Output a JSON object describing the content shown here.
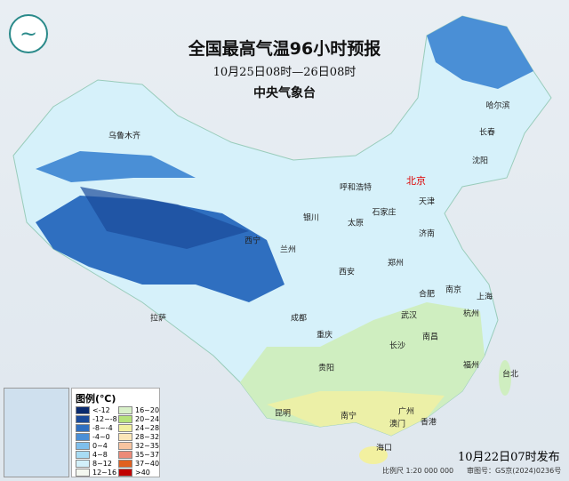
{
  "header": {
    "title": "全国最高气温96小时预报",
    "period": "10月25日08时—26日08时",
    "issuer": "中央气象台"
  },
  "cities": [
    {
      "name": "乌鲁木齐"
    },
    {
      "name": "哈尔滨"
    },
    {
      "name": "长春"
    },
    {
      "name": "沈阳"
    },
    {
      "name": "北京",
      "capital": true
    },
    {
      "name": "天津"
    },
    {
      "name": "呼和浩特"
    },
    {
      "name": "石家庄"
    },
    {
      "name": "太原"
    },
    {
      "name": "济南"
    },
    {
      "name": "银川"
    },
    {
      "name": "西宁"
    },
    {
      "name": "兰州"
    },
    {
      "name": "郑州"
    },
    {
      "name": "西安"
    },
    {
      "name": "合肥"
    },
    {
      "name": "南京"
    },
    {
      "name": "上海"
    },
    {
      "name": "杭州"
    },
    {
      "name": "武汉"
    },
    {
      "name": "成都"
    },
    {
      "name": "拉萨"
    },
    {
      "name": "重庆"
    },
    {
      "name": "长沙"
    },
    {
      "name": "南昌"
    },
    {
      "name": "贵阳"
    },
    {
      "name": "福州"
    },
    {
      "name": "台北"
    },
    {
      "name": "昆明"
    },
    {
      "name": "南宁"
    },
    {
      "name": "广州"
    },
    {
      "name": "澳门"
    },
    {
      "name": "香港"
    },
    {
      "name": "海口"
    }
  ],
  "legend": {
    "title": "图例(℃)",
    "items": [
      {
        "label": "<-12",
        "color": "#0a2a6e"
      },
      {
        "label": "-12~-8",
        "color": "#1a4a9a"
      },
      {
        "label": "-8~-4",
        "color": "#2f6fc0"
      },
      {
        "label": "-4~0",
        "color": "#4a8fd6"
      },
      {
        "label": "0~4",
        "color": "#7fbfec"
      },
      {
        "label": "4~8",
        "color": "#a8dcf4"
      },
      {
        "label": "8~12",
        "color": "#d2f0fa"
      },
      {
        "label": "12~16",
        "color": "#f4f8f0"
      },
      {
        "label": "16~20",
        "color": "#d8f0c8"
      },
      {
        "label": "20~24",
        "color": "#b6e27a"
      },
      {
        "label": "24~28",
        "color": "#f2f0a0"
      },
      {
        "label": "28~32",
        "color": "#fbe6b8"
      },
      {
        "label": "32~35",
        "color": "#f7c4a0"
      },
      {
        "label": "35~37",
        "color": "#ec8a78"
      },
      {
        "label": "37~40",
        "color": "#e06020"
      },
      {
        "label": ">40",
        "color": "#c00000"
      }
    ]
  },
  "footer": {
    "published": "10月22日07时发布",
    "scale": "比例尺 1:20 000 000",
    "review_no": "审图号：GS京(2024)0236号"
  }
}
